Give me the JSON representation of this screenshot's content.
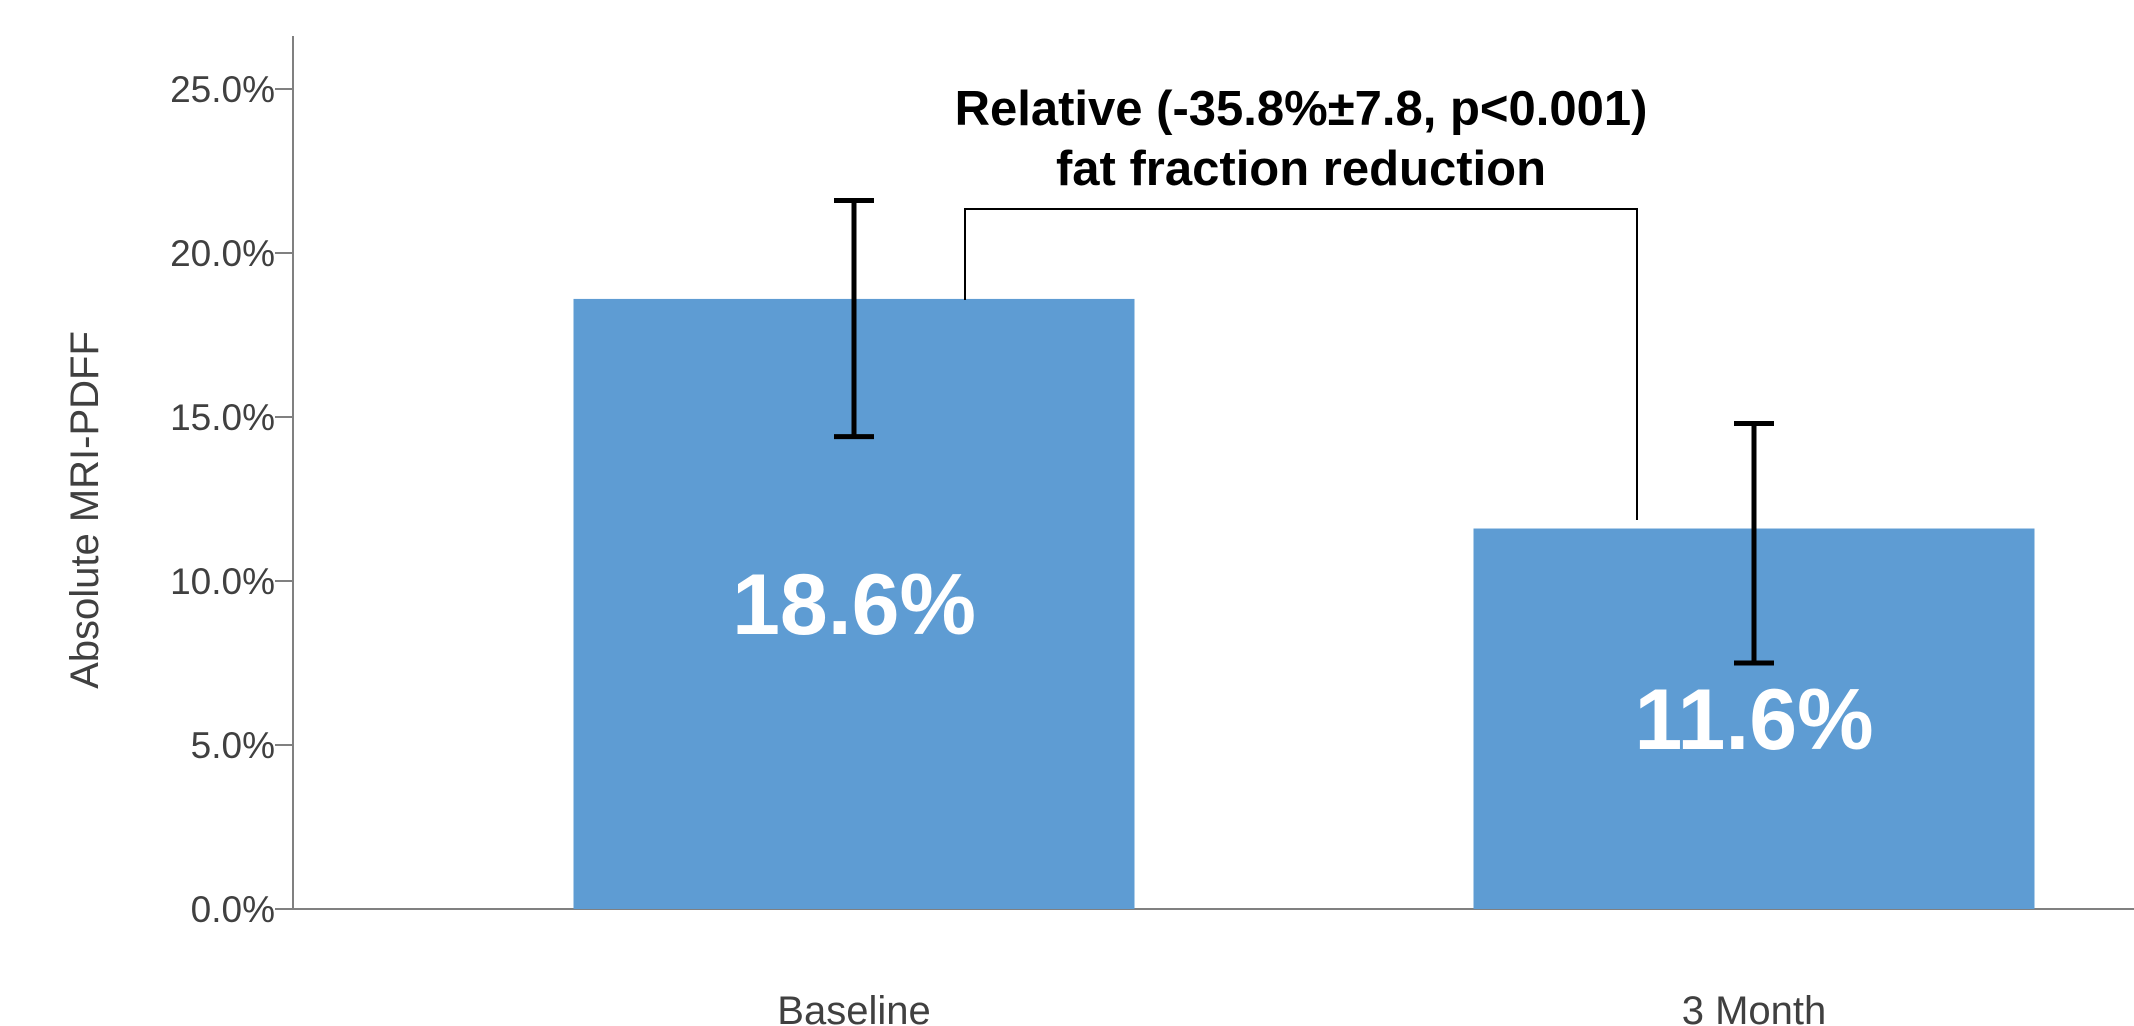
{
  "chart_data": {
    "type": "bar",
    "categories": [
      "Baseline",
      "3 Month"
    ],
    "values": [
      18.6,
      11.6
    ],
    "value_labels": [
      "18.6%",
      "11.6%"
    ],
    "error_bars": [
      {
        "low": 14.4,
        "high": 21.6
      },
      {
        "low": 7.5,
        "high": 14.8
      }
    ],
    "ylabel": "Absolute MRI-PDFF",
    "ylim": [
      0,
      25
    ],
    "yticks": [
      0,
      5,
      10,
      15,
      20,
      25
    ],
    "ytick_labels": [
      "0.0%",
      "5.0%",
      "10.0%",
      "15.0%",
      "20.0%",
      "25.0%"
    ],
    "annotation": {
      "line1": "Relative (-35.8%±7.8, p<0.001)",
      "line2": "fat fraction reduction"
    },
    "grid": false,
    "colors": {
      "bar": "#5E9CD3",
      "error_bar": "#000000",
      "axis": "#808080"
    }
  }
}
